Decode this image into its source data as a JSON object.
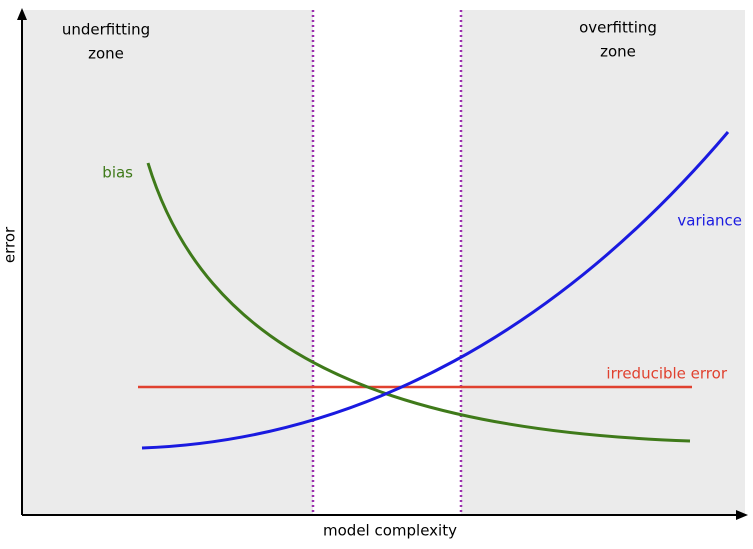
{
  "diagram": {
    "zones": {
      "underfitting": [
        "underfitting",
        "zone"
      ],
      "overfitting": [
        "overfitting",
        "zone"
      ]
    },
    "curves": {
      "bias": "bias",
      "variance": "variance",
      "irreducible": "irreducible error"
    },
    "axes": {
      "y": "error",
      "x": "model complexity"
    }
  }
}
